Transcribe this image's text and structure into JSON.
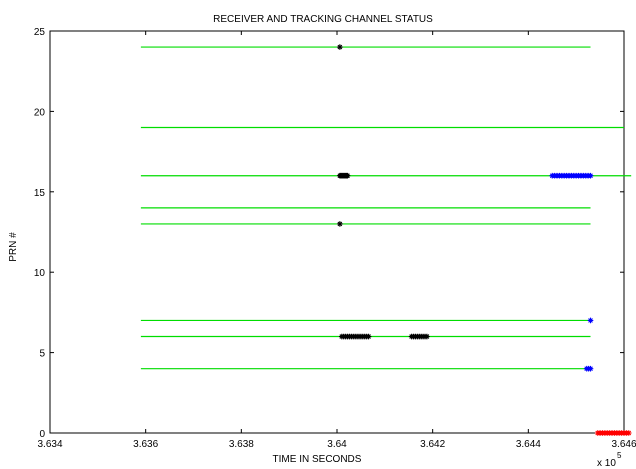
{
  "chart_data": {
    "type": "scatter",
    "title": "RECEIVER AND TRACKING CHANNEL STATUS",
    "xlabel": "TIME IN SECONDS",
    "ylabel": "PRN #",
    "x_multiplier_label": "x 10",
    "x_multiplier_exponent": "5",
    "xlim": [
      363400,
      364600
    ],
    "ylim": [
      0,
      25
    ],
    "x_ticks": [
      363400,
      363600,
      363800,
      364000,
      364200,
      364400,
      364600
    ],
    "x_tick_labels": [
      "3.634",
      "3.636",
      "3.638",
      "3.64",
      "3.642",
      "3.644",
      "3.646"
    ],
    "y_ticks": [
      0,
      5,
      10,
      15,
      20,
      25
    ],
    "y_tick_labels": [
      "0",
      "5",
      "10",
      "15",
      "20",
      "25"
    ],
    "grid": false,
    "colors": {
      "tracking_line": "#00dd00",
      "black_markers": "#000000",
      "blue_markers": "#0000ff",
      "red_markers": "#ff0000"
    },
    "tracking_lines": [
      {
        "prn": 24,
        "x_start": 363590,
        "x_end": 364530
      },
      {
        "prn": 19,
        "x_start": 363590,
        "x_end": 364600
      },
      {
        "prn": 16,
        "x_start": 363590,
        "x_end": 364615
      },
      {
        "prn": 14,
        "x_start": 363590,
        "x_end": 364530
      },
      {
        "prn": 13,
        "x_start": 363590,
        "x_end": 364530
      },
      {
        "prn": 7,
        "x_start": 363590,
        "x_end": 364530
      },
      {
        "prn": 6,
        "x_start": 363590,
        "x_end": 364530
      },
      {
        "prn": 4,
        "x_start": 363590,
        "x_end": 364530
      }
    ],
    "marker_series": [
      {
        "color_key": "black_markers",
        "points": [
          [
            364006,
            24
          ],
          [
            364006,
            16
          ],
          [
            364008,
            16
          ],
          [
            364010,
            16
          ],
          [
            364012,
            16
          ],
          [
            364014,
            16
          ],
          [
            364016,
            16
          ],
          [
            364018,
            16
          ],
          [
            364020,
            16
          ],
          [
            364022,
            16
          ],
          [
            364006,
            13
          ],
          [
            364010,
            6
          ],
          [
            364014,
            6
          ],
          [
            364018,
            6
          ],
          [
            364022,
            6
          ],
          [
            364026,
            6
          ],
          [
            364030,
            6
          ],
          [
            364034,
            6
          ],
          [
            364038,
            6
          ],
          [
            364042,
            6
          ],
          [
            364046,
            6
          ],
          [
            364050,
            6
          ],
          [
            364054,
            6
          ],
          [
            364058,
            6
          ],
          [
            364062,
            6
          ],
          [
            364066,
            6
          ],
          [
            364156,
            6
          ],
          [
            364160,
            6
          ],
          [
            364164,
            6
          ],
          [
            364168,
            6
          ],
          [
            364172,
            6
          ],
          [
            364176,
            6
          ],
          [
            364180,
            6
          ],
          [
            364184,
            6
          ],
          [
            364188,
            6
          ]
        ]
      },
      {
        "color_key": "blue_markers",
        "points": [
          [
            364450,
            16
          ],
          [
            364455,
            16
          ],
          [
            364460,
            16
          ],
          [
            364465,
            16
          ],
          [
            364470,
            16
          ],
          [
            364475,
            16
          ],
          [
            364480,
            16
          ],
          [
            364485,
            16
          ],
          [
            364490,
            16
          ],
          [
            364495,
            16
          ],
          [
            364500,
            16
          ],
          [
            364505,
            16
          ],
          [
            364510,
            16
          ],
          [
            364515,
            16
          ],
          [
            364520,
            16
          ],
          [
            364525,
            16
          ],
          [
            364530,
            16
          ],
          [
            364530,
            7
          ],
          [
            364522,
            4
          ],
          [
            364526,
            4
          ],
          [
            364530,
            4
          ]
        ]
      },
      {
        "color_key": "red_markers",
        "points": [
          [
            364545,
            0
          ],
          [
            364550,
            0
          ],
          [
            364555,
            0
          ],
          [
            364560,
            0
          ],
          [
            364565,
            0
          ],
          [
            364570,
            0
          ],
          [
            364575,
            0
          ],
          [
            364580,
            0
          ],
          [
            364585,
            0
          ],
          [
            364590,
            0
          ],
          [
            364595,
            0
          ],
          [
            364600,
            0
          ],
          [
            364605,
            0
          ],
          [
            364610,
            0
          ]
        ]
      }
    ]
  }
}
